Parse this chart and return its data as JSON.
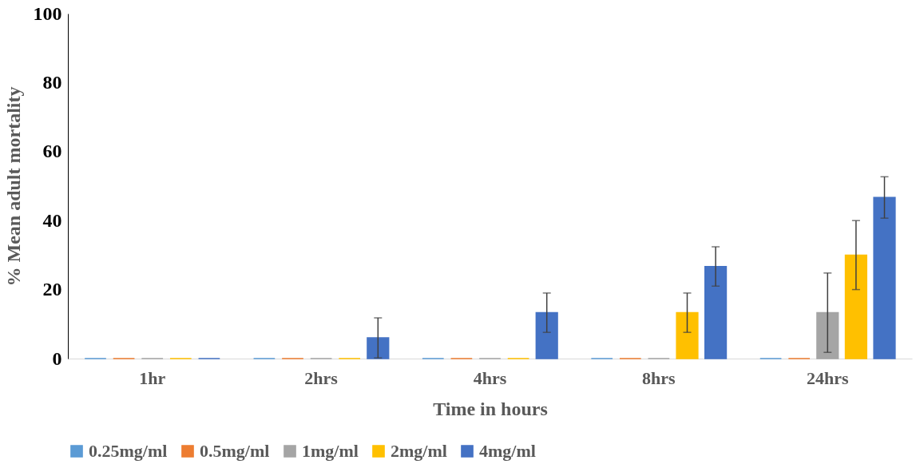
{
  "chart_data": {
    "type": "bar",
    "xlabel": "Time in hours",
    "ylabel": "% Mean adult mortality",
    "categories": [
      "1hr",
      "2hrs",
      "4hrs",
      "8hrs",
      "24hrs"
    ],
    "series": [
      {
        "name": "0.25mg/ml",
        "color": "#5b9bd5",
        "values": [
          0,
          0,
          0,
          0,
          0
        ]
      },
      {
        "name": "0.5mg/ml",
        "color": "#ed7d31",
        "values": [
          0,
          0,
          0,
          0,
          0
        ]
      },
      {
        "name": "1mg/ml",
        "color": "#a5a5a5",
        "values": [
          0,
          0,
          0,
          0,
          13.3
        ],
        "errors": [
          null,
          null,
          null,
          null,
          11.5
        ]
      },
      {
        "name": "2mg/ml",
        "color": "#ffc000",
        "values": [
          0,
          0,
          0,
          13.3,
          30
        ],
        "errors": [
          null,
          null,
          null,
          5.7,
          10
        ]
      },
      {
        "name": "4mg/ml",
        "color": "#4472c4",
        "values": [
          0,
          6,
          13.3,
          26.7,
          46.7
        ],
        "errors": [
          null,
          5.8,
          5.7,
          5.7,
          6
        ]
      }
    ],
    "ylim": [
      0,
      100
    ],
    "yticks": [
      0,
      20,
      40,
      60,
      80,
      100
    ],
    "grid": false,
    "legend": "bottom"
  }
}
